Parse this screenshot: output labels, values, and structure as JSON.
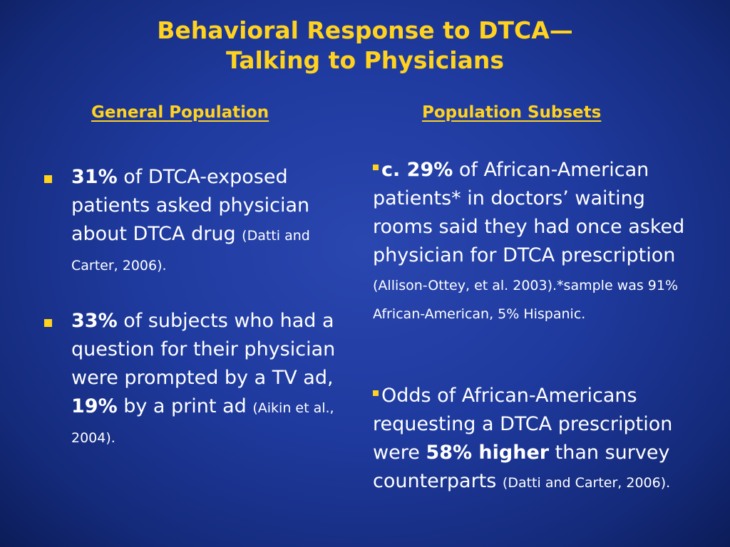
{
  "title": {
    "line1": "Behavioral Response to DTCA—",
    "line2": "Talking to Physicians"
  },
  "left_column": {
    "heading": "General Population",
    "items": [
      {
        "bold": "31%",
        "text": " of DTCA-exposed patients asked physician about DTCA drug ",
        "cite": "(Datti and Carter, 2006)."
      },
      {
        "bold": "33%",
        "text": " of subjects who had a question for their physician were prompted by a TV ad, ",
        "bold2": "19%",
        "text2": " by a print ad ",
        "cite": "(Aikin et al., 2004)."
      }
    ]
  },
  "right_column": {
    "heading": "Population Subsets",
    "items": [
      {
        "bold": "c. 29%",
        "text": " of African-American patients* in doctors’ waiting rooms said they had once asked physician for DTCA prescription ",
        "cite": "(Allison-Ottey, et al. 2003).*sample was 91% African-American, 5% Hispanic."
      },
      {
        "text": "Odds of African-Americans requesting a DTCA prescription were ",
        "bold": "58% higher",
        "text2": " than survey counterparts ",
        "cite": "(Datti and Carter, 2006)."
      }
    ]
  },
  "colors": {
    "background": "#1f3a9e",
    "accent": "#ffd21f",
    "text": "#ffffff"
  }
}
